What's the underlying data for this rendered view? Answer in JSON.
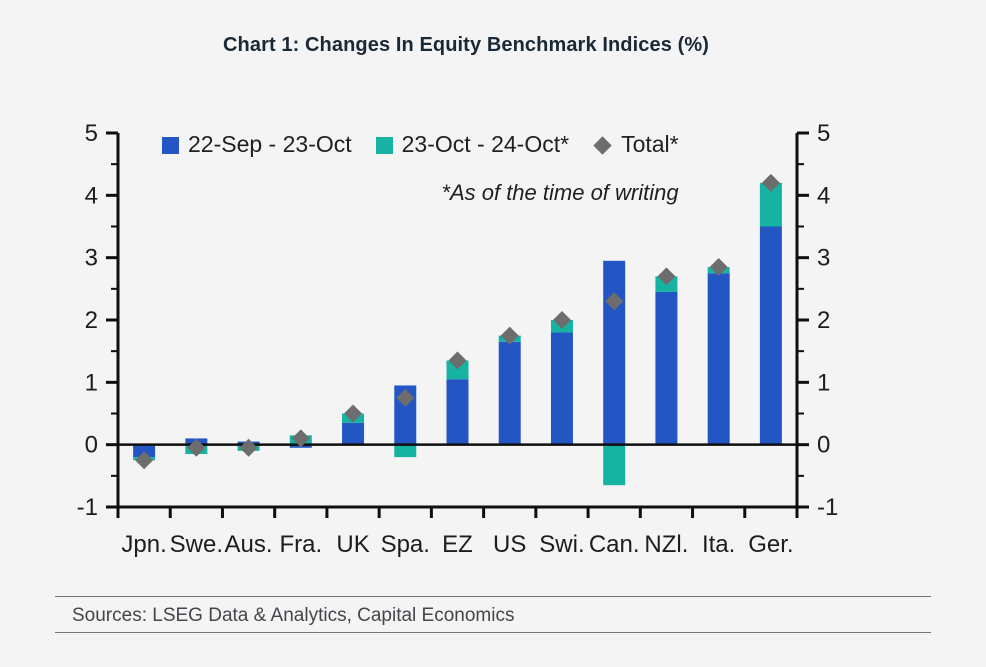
{
  "title": "Chart 1: Changes In Equity Benchmark Indices (%)",
  "annotation": "*As of the time of writing",
  "legend": {
    "items": [
      {
        "label": "22-Sep - 23-Oct",
        "marker": "square",
        "color": "#2456c3"
      },
      {
        "label": "23-Oct - 24-Oct*",
        "marker": "square",
        "color": "#17b3a2"
      },
      {
        "label": "Total*",
        "marker": "diamond",
        "color": "#6d6d6d"
      }
    ]
  },
  "sources": "Sources: LSEG Data & Analytics, Capital Economics",
  "colors": {
    "background": "#f4f4f5",
    "axis": "#0e0e0e",
    "tick_text": "#1d1d1d",
    "blue_series": "#2456c3",
    "teal_series": "#17b3a2",
    "diamond": "#6d6d6d"
  },
  "chart_data": {
    "type": "bar",
    "stacked": true,
    "title": "Chart 1: Changes In Equity Benchmark Indices (%)",
    "annotation": "*As of the time of writing",
    "categories": [
      "Jpn.",
      "Swe.",
      "Aus.",
      "Fra.",
      "UK",
      "Spa.",
      "EZ",
      "US",
      "Swi.",
      "Can.",
      "NZl.",
      "Ita.",
      "Ger."
    ],
    "series": [
      {
        "name": "22-Sep - 23-Oct",
        "type": "bar",
        "color": "#2456c3",
        "values": [
          -0.2,
          0.1,
          0.05,
          -0.05,
          0.35,
          0.95,
          1.05,
          1.65,
          1.8,
          2.95,
          2.45,
          2.75,
          3.5
        ]
      },
      {
        "name": "23-Oct - 24-Oct*",
        "type": "bar",
        "color": "#17b3a2",
        "values": [
          -0.05,
          -0.15,
          -0.1,
          0.15,
          0.15,
          -0.2,
          0.3,
          0.1,
          0.2,
          -0.65,
          0.25,
          0.1,
          0.7
        ]
      },
      {
        "name": "Total*",
        "type": "scatter-diamond",
        "color": "#6d6d6d",
        "values": [
          -0.25,
          -0.05,
          -0.05,
          0.1,
          0.5,
          0.75,
          1.35,
          1.75,
          2.0,
          2.3,
          2.7,
          2.85,
          4.2
        ]
      }
    ],
    "ylim": [
      -1,
      5
    ],
    "yticks": [
      5,
      4,
      3,
      2,
      1,
      0,
      -1
    ],
    "minor_tick_step": 0.5,
    "dual_axis": true,
    "grid": false,
    "legend_position": "top-inside"
  }
}
